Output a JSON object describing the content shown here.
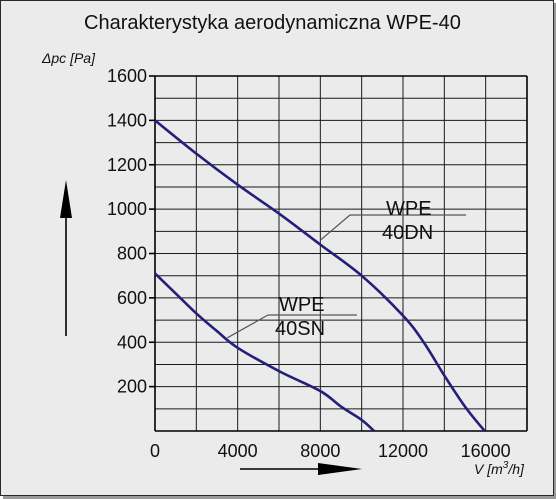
{
  "chart_data": {
    "type": "line",
    "title": "Charakterystyka aerodynamiczna  WPE-40",
    "ylabel": "Δpc [Pa]",
    "xlabel_prefix": "V [m",
    "xlabel_sup": "3",
    "xlabel_suffix": "/h]",
    "xlim": [
      0,
      18000
    ],
    "ylim": [
      0,
      1600
    ],
    "grid": true,
    "x_ticks": [
      {
        "value": 0,
        "label": "0"
      },
      {
        "value": 4000,
        "label": "4000"
      },
      {
        "value": 8000,
        "label": "8000"
      },
      {
        "value": 12000,
        "label": "12000"
      },
      {
        "value": 16000,
        "label": "16000"
      }
    ],
    "y_ticks": [
      {
        "value": 200,
        "label": "200"
      },
      {
        "value": 400,
        "label": "400"
      },
      {
        "value": 600,
        "label": "600"
      },
      {
        "value": 800,
        "label": "800"
      },
      {
        "value": 1000,
        "label": "1000"
      },
      {
        "value": 1200,
        "label": "1200"
      },
      {
        "value": 1400,
        "label": "1400"
      },
      {
        "value": 1600,
        "label": "1600"
      }
    ],
    "series": [
      {
        "name_line1": "WPE",
        "name_line2": "40DN",
        "color": "#24207a",
        "x": [
          0,
          2000,
          4000,
          6000,
          8000,
          10000,
          12000,
          13000,
          14000,
          15000,
          15950
        ],
        "y": [
          1400,
          1250,
          1110,
          980,
          840,
          700,
          520,
          400,
          250,
          110,
          0
        ]
      },
      {
        "name_line1": "WPE",
        "name_line2": "40SN",
        "color": "#24207a",
        "x": [
          0,
          1000,
          2000,
          3000,
          4000,
          6000,
          8000,
          9000,
          10000,
          10600
        ],
        "y": [
          710,
          620,
          530,
          450,
          375,
          270,
          180,
          110,
          50,
          0
        ]
      }
    ]
  }
}
